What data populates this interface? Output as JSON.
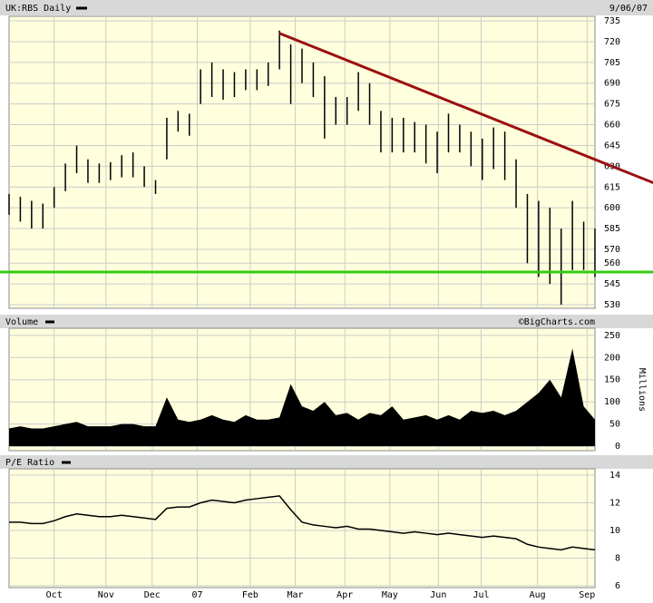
{
  "chart_data": [
    {
      "type": "range-bar",
      "title": "UK:RBS Daily",
      "date": "9/06/07",
      "color": "#000000",
      "high": [
        610,
        608,
        605,
        603,
        615,
        632,
        645,
        635,
        632,
        633,
        638,
        640,
        630,
        620,
        665,
        670,
        668,
        700,
        705,
        700,
        698,
        700,
        700,
        705,
        728,
        718,
        715,
        705,
        695,
        680,
        680,
        698,
        690,
        670,
        665,
        665,
        662,
        660,
        655,
        668,
        660,
        655,
        650,
        658,
        655,
        635,
        610,
        605,
        600,
        585,
        605,
        590,
        585
      ],
      "low": [
        595,
        590,
        585,
        585,
        600,
        612,
        625,
        618,
        618,
        620,
        622,
        622,
        615,
        610,
        635,
        655,
        652,
        675,
        680,
        678,
        680,
        685,
        685,
        688,
        700,
        675,
        690,
        680,
        650,
        660,
        660,
        670,
        660,
        640,
        640,
        640,
        640,
        632,
        625,
        640,
        640,
        630,
        620,
        628,
        620,
        600,
        560,
        550,
        545,
        530,
        555,
        555,
        550
      ],
      "ylim": [
        527.4,
        738.3
      ],
      "yticks": [
        530,
        545,
        560,
        570,
        585,
        600,
        615,
        630,
        645,
        660,
        675,
        690,
        705,
        720,
        735
      ],
      "trendlines": [
        {
          "color": "#9b1010",
          "x": [
            24,
            57.2
          ],
          "y": [
            726,
            618
          ]
        },
        {
          "color": "#33cc11",
          "x": [
            -0.8,
            57.2
          ],
          "y": [
            553.6,
            553.6
          ]
        }
      ],
      "grid": true
    },
    {
      "type": "area",
      "title": "Volume",
      "source": "©BigCharts.com",
      "y_label": "Millions",
      "color": "#000000",
      "values": [
        40,
        45,
        40,
        40,
        45,
        50,
        55,
        45,
        45,
        45,
        50,
        50,
        45,
        45,
        110,
        60,
        55,
        60,
        70,
        60,
        55,
        70,
        60,
        60,
        65,
        140,
        90,
        80,
        100,
        70,
        75,
        60,
        75,
        70,
        90,
        60,
        65,
        70,
        60,
        70,
        60,
        80,
        75,
        80,
        70,
        80,
        100,
        120,
        150,
        110,
        220,
        90,
        60
      ],
      "ylim": [
        -10,
        266
      ],
      "yticks": [
        0,
        50,
        100,
        150,
        200,
        250
      ],
      "grid": true
    },
    {
      "type": "line",
      "title": "P/E Ratio",
      "color": "#000000",
      "values": [
        10.6,
        10.6,
        10.5,
        10.5,
        10.7,
        11.0,
        11.2,
        11.1,
        11.0,
        11.0,
        11.1,
        11.0,
        10.9,
        10.8,
        11.6,
        11.7,
        11.7,
        12.0,
        12.2,
        12.1,
        12.0,
        12.2,
        12.3,
        12.4,
        12.5,
        11.5,
        10.6,
        10.4,
        10.3,
        10.2,
        10.3,
        10.1,
        10.1,
        10.0,
        9.9,
        9.8,
        9.9,
        9.8,
        9.7,
        9.8,
        9.7,
        9.6,
        9.5,
        9.6,
        9.5,
        9.4,
        9.0,
        8.8,
        8.7,
        8.6,
        8.8,
        8.7,
        8.6
      ],
      "ylim": [
        5.87,
        14.46
      ],
      "yticks": [
        6,
        8,
        10,
        12,
        14
      ],
      "xlim": [
        0,
        52
      ],
      "xticks": [
        {
          "value": 4.0,
          "label": "Oct"
        },
        {
          "value": 8.6,
          "label": "Nov"
        },
        {
          "value": 12.7,
          "label": "Dec"
        },
        {
          "value": 16.7,
          "label": "07"
        },
        {
          "value": 21.4,
          "label": "Feb"
        },
        {
          "value": 25.4,
          "label": "Mar"
        },
        {
          "value": 29.8,
          "label": "Apr"
        },
        {
          "value": 33.8,
          "label": "May"
        },
        {
          "value": 38.1,
          "label": "Jun"
        },
        {
          "value": 41.9,
          "label": "Jul"
        },
        {
          "value": 46.9,
          "label": "Aug"
        },
        {
          "value": 51.3,
          "label": "Sep"
        }
      ],
      "grid": true
    }
  ]
}
